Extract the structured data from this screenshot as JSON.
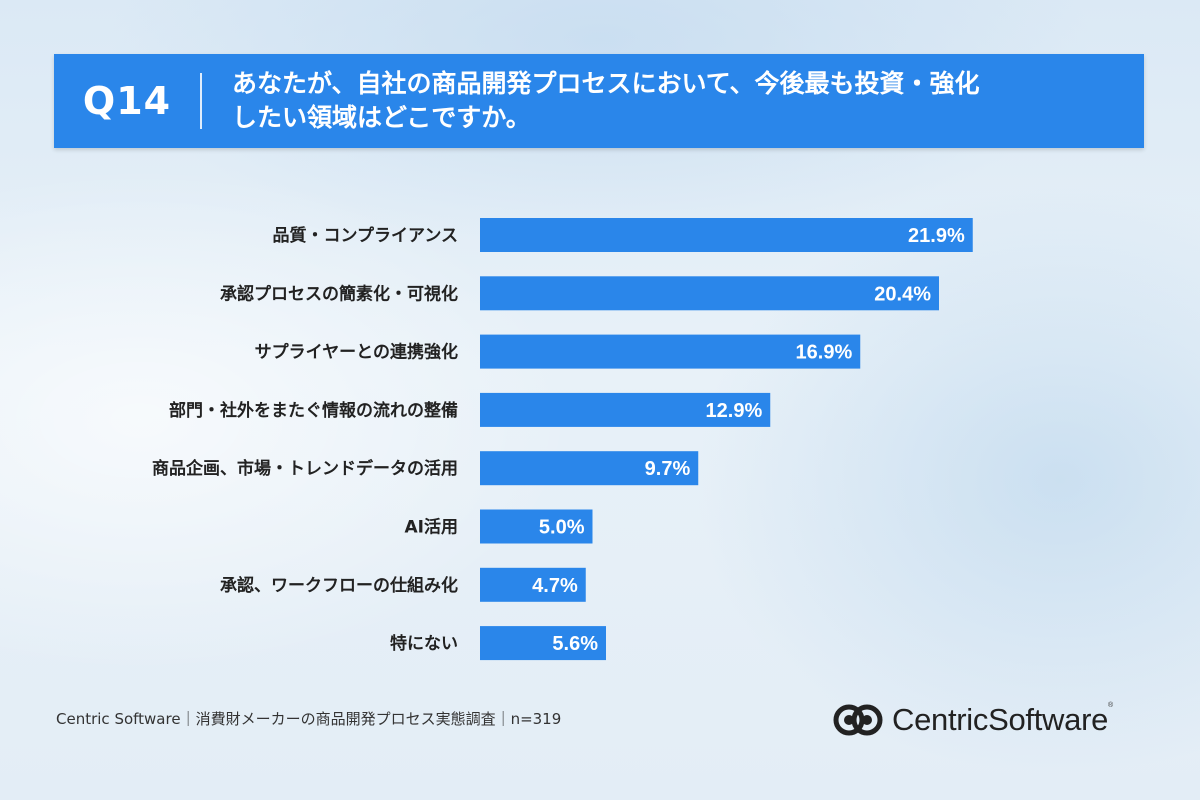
{
  "header": {
    "question_number": "Q14",
    "question_line1": "あなたが、自社の商品開発プロセスにおいて、今後最も投資・強化",
    "question_line2": "したい領域はどこですか。"
  },
  "chart_data": {
    "type": "bar",
    "orientation": "horizontal",
    "categories": [
      "品質・コンプライアンス",
      "承認プロセスの簡素化・可視化",
      "サプライヤーとの連携強化",
      "部門・社外をまたぐ情報の流れの整備",
      "商品企画、市場・トレンドデータの活用",
      "AI活用",
      "承認、ワークフローの仕組み化",
      "特にない"
    ],
    "values": [
      21.9,
      20.4,
      16.9,
      12.9,
      9.7,
      5.0,
      4.7,
      5.6
    ],
    "value_labels": [
      "21.9%",
      "20.4%",
      "16.9%",
      "12.9%",
      "9.7%",
      "5.0%",
      "4.7%",
      "5.6%"
    ],
    "bar_color": "#2a86ea",
    "grid": false
  },
  "footer": {
    "source_note": "Centric Software｜消費財メーカーの商品開発プロセス実態調査｜n=319"
  },
  "logo": {
    "text": "CentricSoftware",
    "registered_mark": "®",
    "icon": "centric-interlocking-rings-icon"
  }
}
